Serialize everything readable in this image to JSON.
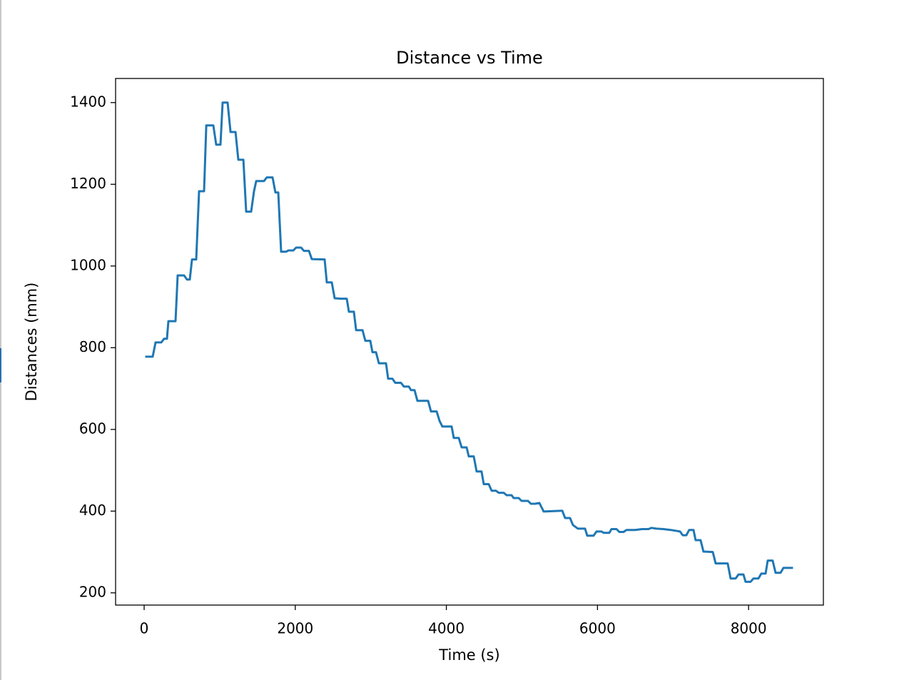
{
  "chart_data": {
    "type": "line",
    "title": "Distance vs Time",
    "x_label": "Time (s)",
    "y_label": "Distances (mm)",
    "color": "#1f77b4",
    "x": [
      28,
      113,
      151,
      227,
      264,
      302,
      321,
      415,
      444,
      529,
      567,
      604,
      633,
      689,
      727,
      793,
      822,
      916,
      954,
      1010,
      1039,
      1105,
      1143,
      1209,
      1246,
      1313,
      1350,
      1416,
      1454,
      1483,
      1586,
      1624,
      1700,
      1737,
      1775,
      1813,
      1879,
      1907,
      1974,
      2011,
      2077,
      2115,
      2181,
      2219,
      2389,
      2417,
      2483,
      2521,
      2606,
      2682,
      2710,
      2776,
      2805,
      2890,
      2927,
      2993,
      3022,
      3069,
      3107,
      3201,
      3229,
      3286,
      3324,
      3399,
      3437,
      3503,
      3532,
      3579,
      3617,
      3758,
      3796,
      3872,
      3909,
      3947,
      4070,
      4098,
      4164,
      4202,
      4268,
      4297,
      4363,
      4400,
      4466,
      4495,
      4561,
      4599,
      4655,
      4693,
      4759,
      4797,
      4863,
      4891,
      4958,
      4995,
      5080,
      5118,
      5175,
      5231,
      5288,
      5534,
      5571,
      5637,
      5675,
      5741,
      5836,
      5864,
      5949,
      5987,
      6053,
      6081,
      6157,
      6185,
      6251,
      6289,
      6346,
      6384,
      6497,
      6591,
      6676,
      6714,
      6780,
      6874,
      6969,
      7035,
      7092,
      7129,
      7176,
      7214,
      7271,
      7299,
      7365,
      7403,
      7526,
      7564,
      7724,
      7762,
      7828,
      7866,
      7932,
      7960,
      8026,
      8064,
      8130,
      8168,
      8225,
      8253,
      8319,
      8357,
      8423,
      8461,
      8574
    ],
    "values": [
      778,
      778,
      813,
      813,
      822,
      822,
      865,
      865,
      977,
      977,
      967,
      967,
      1016,
      1016,
      1183,
      1183,
      1344,
      1344,
      1297,
      1297,
      1400,
      1400,
      1328,
      1328,
      1260,
      1260,
      1133,
      1133,
      1183,
      1208,
      1208,
      1217,
      1217,
      1180,
      1180,
      1035,
      1035,
      1038,
      1038,
      1045,
      1045,
      1037,
      1037,
      1017,
      1016,
      960,
      960,
      921,
      920,
      920,
      888,
      888,
      843,
      843,
      817,
      817,
      789,
      789,
      762,
      762,
      724,
      724,
      714,
      714,
      705,
      705,
      696,
      696,
      670,
      670,
      644,
      644,
      621,
      607,
      607,
      579,
      579,
      556,
      556,
      534,
      534,
      497,
      497,
      466,
      466,
      450,
      450,
      445,
      445,
      439,
      439,
      432,
      432,
      425,
      425,
      418,
      418,
      420,
      399,
      401,
      383,
      383,
      366,
      357,
      357,
      340,
      340,
      350,
      350,
      347,
      347,
      356,
      356,
      349,
      349,
      354,
      354,
      356,
      356,
      359,
      357,
      356,
      354,
      352,
      350,
      341,
      341,
      354,
      354,
      329,
      329,
      301,
      300,
      272,
      272,
      235,
      235,
      245,
      245,
      227,
      227,
      235,
      235,
      247,
      247,
      279,
      279,
      249,
      249,
      261,
      261
    ],
    "xlim": [
      -378,
      8990
    ],
    "ylim": [
      170,
      1459
    ],
    "xticks": [
      0,
      2000,
      4000,
      6000,
      8000
    ],
    "yticks": [
      200,
      400,
      600,
      800,
      1000,
      1200,
      1400
    ]
  }
}
